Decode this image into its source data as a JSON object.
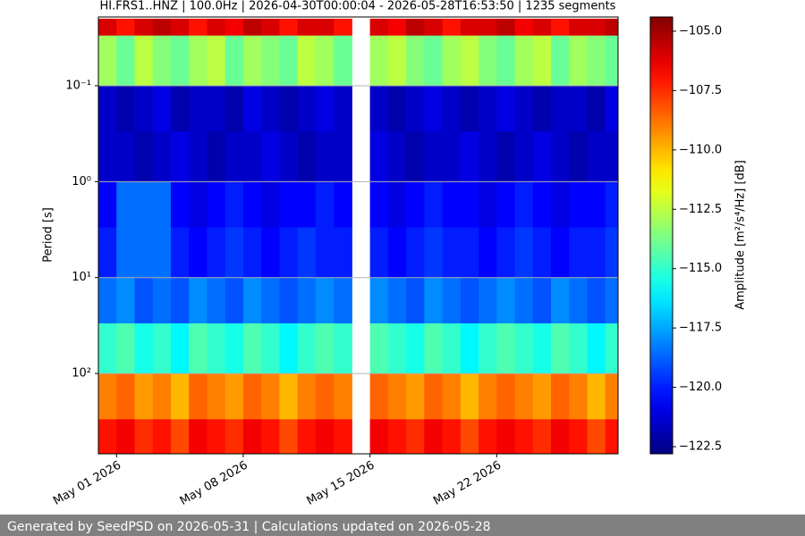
{
  "chart_data": {
    "type": "heatmap",
    "title": "HI.FRS1..HNZ | 100.0Hz | 2026-04-30T00:00:04 - 2026-05-28T16:53:50 | 1235 segments",
    "ylabel": "Period [s]",
    "colorbar_label": "Amplitude [m²/s⁴/Hz] [dB]",
    "footer": "Generated by SeedPSD on 2026-05-31 | Calculations updated on 2026-05-28",
    "colormap": "jet",
    "x": [
      "2026-04-30",
      "2026-05-01",
      "2026-05-02",
      "2026-05-03",
      "2026-05-04",
      "2026-05-05",
      "2026-05-06",
      "2026-05-07",
      "2026-05-08",
      "2026-05-09",
      "2026-05-10",
      "2026-05-11",
      "2026-05-12",
      "2026-05-13",
      "2026-05-14",
      "2026-05-15",
      "2026-05-16",
      "2026-05-17",
      "2026-05-18",
      "2026-05-19",
      "2026-05-20",
      "2026-05-21",
      "2026-05-22",
      "2026-05-23",
      "2026-05-24",
      "2026-05-25",
      "2026-05-26",
      "2026-05-27",
      "2026-05-28"
    ],
    "xlim": [
      "2026-04-30T00:00:04",
      "2026-05-28T16:53:50"
    ],
    "xticks": [
      {
        "value": "2026-05-01",
        "label": "May 01 2026"
      },
      {
        "value": "2026-05-08",
        "label": "May 08 2026"
      },
      {
        "value": "2026-05-15",
        "label": "May 15 2026"
      },
      {
        "value": "2026-05-22",
        "label": "May 22 2026"
      }
    ],
    "y_edges": [
      0.02,
      0.03,
      0.1,
      0.3,
      1,
      3,
      10,
      30,
      100,
      300,
      690
    ],
    "ylim": [
      0.0192,
      687
    ],
    "yscale": "log",
    "yinverted": true,
    "yticks": [
      {
        "value": 0.1,
        "label": "10⁻¹"
      },
      {
        "value": 1,
        "label": "10⁰"
      },
      {
        "value": 10,
        "label": "10¹"
      },
      {
        "value": 100,
        "label": "10²"
      }
    ],
    "grid": true,
    "clim": [
      -122.8,
      -104.4
    ],
    "cticks": [
      {
        "value": -105,
        "label": "−105.0"
      },
      {
        "value": -107.5,
        "label": "−107.5"
      },
      {
        "value": -110,
        "label": "−110.0"
      },
      {
        "value": -112.5,
        "label": "−112.5"
      },
      {
        "value": -115,
        "label": "−115.0"
      },
      {
        "value": -117.5,
        "label": "−117.5"
      },
      {
        "value": -120,
        "label": "−120.0"
      },
      {
        "value": -122.5,
        "label": "−122.5"
      }
    ],
    "values": [
      [
        -106,
        -107,
        -106,
        -105.5,
        -106,
        -107,
        -106,
        -106.5,
        -105.5,
        -106,
        -107,
        -106,
        -106,
        -107,
        null,
        -106,
        -106.5,
        -105.5,
        -106,
        -107,
        -106,
        -106,
        -105.5,
        -106.5,
        -106,
        -107,
        -106,
        -106,
        -105.5
      ],
      [
        -113,
        -114,
        -112.5,
        -113.5,
        -114,
        -113,
        -112.5,
        -114,
        -113,
        -113.5,
        -114,
        -112.5,
        -113,
        -114,
        null,
        -113,
        -112.5,
        -113.5,
        -114,
        -113,
        -112.5,
        -113.5,
        -114,
        -113,
        -112.5,
        -114,
        -113,
        -113.5,
        -114
      ],
      [
        -121.5,
        -122,
        -121.5,
        -121,
        -122,
        -121.5,
        -121.5,
        -122,
        -121,
        -121.5,
        -122,
        -121.5,
        -121,
        -121.5,
        null,
        -121.5,
        -122,
        -121.5,
        -121,
        -121.5,
        -122,
        -121.5,
        -121,
        -121.5,
        -122,
        -121.5,
        -121.5,
        -122,
        -121
      ],
      [
        -121.5,
        -121.5,
        -122,
        -121.5,
        -121,
        -121.5,
        -122,
        -121.5,
        -121.5,
        -121,
        -121.5,
        -122,
        -121.5,
        -121.5,
        null,
        -121,
        -121.5,
        -122,
        -121.5,
        -121.5,
        -121,
        -121.5,
        -122,
        -121.5,
        -121,
        -121.5,
        -122,
        -121.5,
        -121.5
      ],
      [
        -120.5,
        -118.5,
        -118.5,
        -118.5,
        -120.5,
        -121,
        -120.5,
        -120,
        -120.5,
        -121,
        -120.5,
        -120.5,
        -120,
        -120.5,
        null,
        -120.5,
        -121,
        -120.5,
        -120,
        -120.5,
        -120.5,
        -121,
        -120.5,
        -120,
        -120.5,
        -121,
        -120.5,
        -120.5,
        -120
      ],
      [
        -120,
        -118.5,
        -118.5,
        -118.5,
        -120,
        -120.5,
        -120,
        -119.5,
        -120,
        -120.5,
        -120,
        -119.5,
        -120,
        -120,
        null,
        -120,
        -120.5,
        -120,
        -119.5,
        -120,
        -120,
        -120.5,
        -120,
        -119.5,
        -120,
        -120.5,
        -120,
        -120,
        -119.5
      ],
      [
        -118.5,
        -118,
        -119,
        -118.5,
        -119,
        -118,
        -118.5,
        -119,
        -118,
        -118.5,
        -119,
        -118.5,
        -118,
        -118.5,
        null,
        -118,
        -118.5,
        -119,
        -118,
        -118.5,
        -119,
        -118.5,
        -118,
        -118.5,
        -119,
        -118,
        -118.5,
        -119,
        -118.5
      ],
      [
        -115,
        -114.5,
        -115.5,
        -115,
        -116,
        -114.5,
        -115,
        -115.5,
        -114.5,
        -115,
        -116,
        -115,
        -114.5,
        -115,
        null,
        -114.5,
        -115,
        -115.5,
        -114.5,
        -115,
        -116,
        -115,
        -114.5,
        -115,
        -115.5,
        -114.5,
        -115,
        -116,
        -115
      ],
      [
        -109,
        -108.5,
        -109.5,
        -109,
        -110,
        -108.5,
        -109,
        -109.5,
        -108.5,
        -109,
        -110,
        -109,
        -108.5,
        -109,
        null,
        -108.5,
        -109,
        -109.5,
        -108.5,
        -109,
        -110,
        -109,
        -108.5,
        -109,
        -109.5,
        -108.5,
        -109,
        -110,
        -109
      ],
      [
        -107,
        -106.5,
        -107.5,
        -107,
        -108,
        -106.5,
        -107,
        -107.5,
        -106.5,
        -107,
        -108,
        -107,
        -106.5,
        -107,
        null,
        -106.5,
        -107,
        -107.5,
        -106.5,
        -107,
        -108,
        -107,
        -106.5,
        -107,
        -107.5,
        -106.5,
        -107,
        -108,
        -107
      ]
    ]
  }
}
